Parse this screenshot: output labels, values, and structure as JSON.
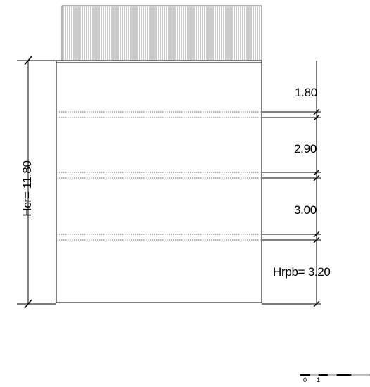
{
  "drawing": {
    "line_color": "#000000",
    "hatch_color": "#555555",
    "floor_line_color": "#666666"
  },
  "dimensions": {
    "total_height_label": "Hcr= 11.80",
    "segments": [
      {
        "label": "1.80"
      },
      {
        "label": "2.90"
      },
      {
        "label": "3.00"
      },
      {
        "label": "Hrpb= 3.20"
      }
    ]
  },
  "scale_bar": {
    "label_0": "0",
    "label_1": "1"
  }
}
